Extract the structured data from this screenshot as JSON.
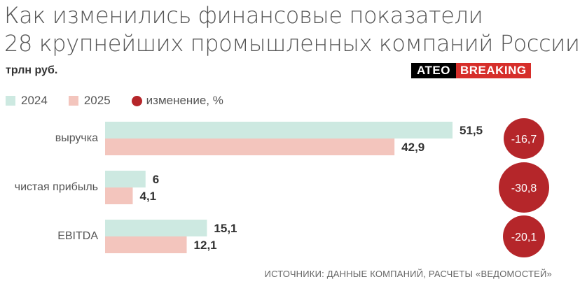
{
  "header": {
    "title_line1": "Как изменились финансовые показатели",
    "title_line2": "28 крупнейших промышленных компаний России",
    "unit": "трлн руб."
  },
  "brand": {
    "part1": "ATEO",
    "part2": "BREAKING"
  },
  "legend": {
    "items": [
      {
        "label": "2024",
        "color": "#cde9e1"
      },
      {
        "label": "2025",
        "color": "#f3c5bd"
      },
      {
        "label": "изменение, %",
        "color": "#b5262a"
      }
    ]
  },
  "source": "ИСТОЧНИКИ: ДАННЫЕ КОМПАНИЙ, РАСЧЕТЫ «ВЕДОМОСТЕЙ»",
  "chart_data": {
    "type": "bar",
    "orientation": "horizontal",
    "categories": [
      "выручка",
      "чистая прибыль",
      "EBITDA"
    ],
    "series": [
      {
        "name": "2024",
        "values": [
          51.5,
          6,
          15.1
        ],
        "labels": [
          "51,5",
          "6",
          "15,1"
        ],
        "color": "#cde9e1"
      },
      {
        "name": "2025",
        "values": [
          42.9,
          4.1,
          12.1
        ],
        "labels": [
          "42,9",
          "4,1",
          "12,1"
        ],
        "color": "#f3c5bd"
      }
    ],
    "change": {
      "name": "изменение, %",
      "values": [
        -16.7,
        -30.8,
        -20.1
      ],
      "labels": [
        "-16,7",
        "-30,8",
        "-20,1"
      ],
      "color": "#b5262a"
    },
    "xlim": [
      0,
      51.5
    ],
    "grid": false,
    "legend_position": "top-left"
  }
}
